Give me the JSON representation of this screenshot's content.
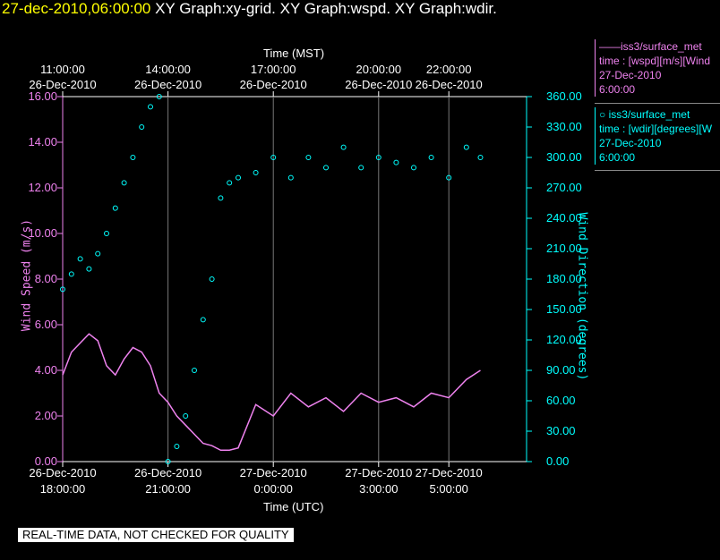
{
  "header": {
    "timestamp": "27-dec-2010,06:00:00",
    "titles": "XY Graph:xy-grid.  XY Graph:wspd.  XY Graph:wdir."
  },
  "colors": {
    "wspd": "#ee82ee",
    "wdir": "#00ffff",
    "background": "#000000"
  },
  "chart_data": {
    "type": "line",
    "xlabel_bottom": "Time (UTC)",
    "xlabel_top": "Time (MST)",
    "ylabel": "Wind Speed (m/s)",
    "y2label": "Wind Direction (degrees)",
    "ylim": [
      0,
      16
    ],
    "y2lim": [
      0,
      360
    ],
    "xlim_hours_utc": [
      "26-Dec-2010 18:00",
      "27-Dec-2010 06:00"
    ],
    "grid": true,
    "bottom_ticks": [
      {
        "h": 0,
        "l1": "26-Dec-2010",
        "l2": "18:00:00"
      },
      {
        "h": 3,
        "l1": "26-Dec-2010",
        "l2": "21:00:00"
      },
      {
        "h": 6,
        "l1": "27-Dec-2010",
        "l2": "0:00:00"
      },
      {
        "h": 9,
        "l1": "27-Dec-2010",
        "l2": "3:00:00"
      },
      {
        "h": 11,
        "l1": "27-Dec-2010",
        "l2": "5:00:00"
      }
    ],
    "top_ticks": [
      {
        "h": 0,
        "l1": "11:00:00",
        "l2": "26-Dec-2010"
      },
      {
        "h": 3,
        "l1": "14:00:00",
        "l2": "26-Dec-2010"
      },
      {
        "h": 6,
        "l1": "17:00:00",
        "l2": "26-Dec-2010"
      },
      {
        "h": 9,
        "l1": "20:00:00",
        "l2": "26-Dec-2010"
      },
      {
        "h": 11,
        "l1": "22:00:00",
        "l2": "26-Dec-2010"
      }
    ],
    "y_ticks": [
      "0.00",
      "2.00",
      "4.00",
      "6.00",
      "8.00",
      "10.00",
      "12.00",
      "14.00",
      "16.00"
    ],
    "y2_ticks": [
      "0.00",
      "30.00",
      "60.00",
      "90.00",
      "120.00",
      "150.00",
      "180.00",
      "210.00",
      "240.00",
      "270.00",
      "300.00",
      "330.00",
      "360.00"
    ],
    "series": [
      {
        "name": "iss3/surface_met",
        "quantity": "wspd",
        "style": "line",
        "hours": [
          0,
          0.25,
          0.5,
          0.75,
          1.0,
          1.25,
          1.5,
          1.75,
          2.0,
          2.25,
          2.5,
          2.75,
          3.0,
          3.25,
          3.5,
          3.75,
          4.0,
          4.25,
          4.5,
          4.75,
          5.0,
          5.5,
          6.0,
          6.5,
          7.0,
          7.5,
          8.0,
          8.5,
          9.0,
          9.5,
          10.0,
          10.5,
          11.0,
          11.5,
          11.9
        ],
        "values": [
          3.8,
          4.8,
          5.2,
          5.6,
          5.3,
          4.2,
          3.8,
          4.5,
          5.0,
          4.8,
          4.2,
          3.0,
          2.6,
          2.0,
          1.6,
          1.2,
          0.8,
          0.7,
          0.5,
          0.5,
          0.6,
          2.5,
          2.0,
          3.0,
          2.4,
          2.8,
          2.2,
          3.0,
          2.6,
          2.8,
          2.4,
          3.0,
          2.8,
          3.6,
          4.0
        ]
      },
      {
        "name": "iss3/surface_met",
        "quantity": "wdir",
        "style": "circles",
        "hours": [
          0,
          0.25,
          0.5,
          0.75,
          1.0,
          1.25,
          1.5,
          1.75,
          2.0,
          2.25,
          2.5,
          2.75,
          3.0,
          3.25,
          3.5,
          3.75,
          4.0,
          4.25,
          4.5,
          4.75,
          5.0,
          5.5,
          6.0,
          6.5,
          7.0,
          7.5,
          8.0,
          8.5,
          9.0,
          9.5,
          10.0,
          10.5,
          11.0,
          11.5,
          11.9
        ],
        "values": [
          170,
          185,
          200,
          190,
          205,
          225,
          250,
          275,
          300,
          330,
          350,
          360,
          0,
          15,
          45,
          90,
          140,
          180,
          260,
          275,
          280,
          285,
          300,
          280,
          300,
          290,
          310,
          290,
          300,
          295,
          290,
          300,
          280,
          310,
          300
        ]
      }
    ]
  },
  "legend": {
    "entry1": {
      "line1": "——iss3/surface_met",
      "line2": "time : [wspd][m/s][Wind",
      "line3": "27-Dec-2010",
      "line4": "6:00:00"
    },
    "entry2": {
      "line1": "○ iss3/surface_met",
      "line2": "time : [wdir][degrees][W",
      "line3": "27-Dec-2010",
      "line4": "6:00:00"
    }
  },
  "footer": {
    "quality_note": "REAL-TIME DATA, NOT CHECKED FOR QUALITY"
  }
}
